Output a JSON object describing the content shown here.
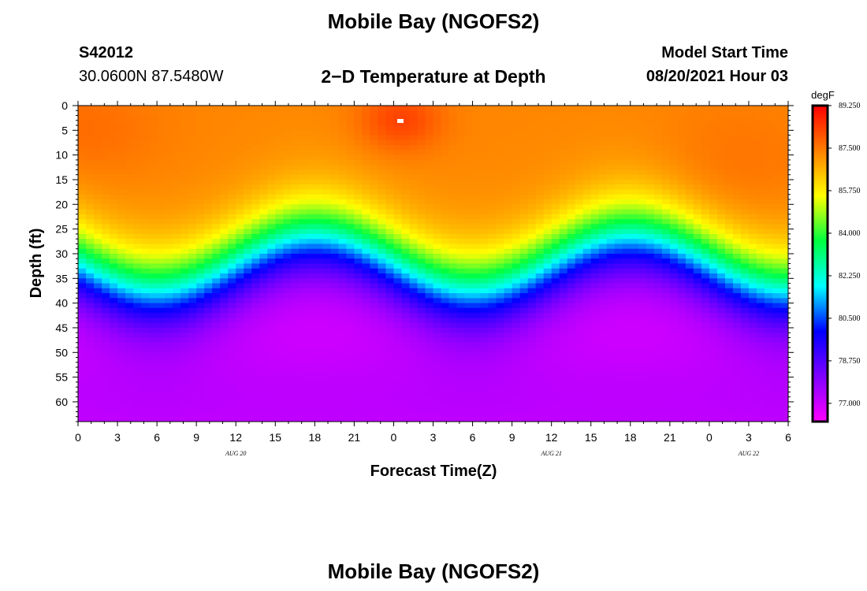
{
  "header": {
    "main_title": "Mobile Bay (NGOFS2)",
    "station_id": "S42012",
    "station_coords": "30.0600N  87.5480W",
    "chart_title": "2−D Temperature at Depth",
    "model_start_label": "Model Start Time",
    "model_start_value": "08/20/2021 Hour 03"
  },
  "footer": {
    "title": "Mobile Bay (NGOFS2)"
  },
  "chart_data": {
    "type": "heatmap",
    "title": "2−D Temperature at Depth",
    "xlabel": "Forecast Time(Z)",
    "ylabel": "Depth (ft)",
    "x_range_hours": [
      0,
      54
    ],
    "y_range_ft": [
      0,
      64
    ],
    "y_reversed": true,
    "x_ticks": [
      "0",
      "3",
      "6",
      "9",
      "12",
      "15",
      "18",
      "21",
      "0",
      "3",
      "6",
      "9",
      "12",
      "15",
      "18",
      "21",
      "0",
      "3",
      "6"
    ],
    "date_labels": [
      {
        "hour": 12,
        "label": "AUG  20"
      },
      {
        "hour": 36,
        "label": "AUG  21"
      },
      {
        "hour": 51,
        "label": "AUG  22"
      }
    ],
    "y_ticks": [
      0,
      5,
      10,
      15,
      20,
      25,
      30,
      35,
      40,
      45,
      50,
      55,
      60
    ],
    "colorbar": {
      "unit": "degF",
      "min": 76.25,
      "max": 89.25,
      "labels": [
        "89.250",
        "87.500",
        "85.750",
        "84.000",
        "82.250",
        "80.500",
        "78.750",
        "77.000"
      ],
      "colors": [
        "#ff00ff",
        "#8000ff",
        "#0000ff",
        "#00ffff",
        "#00ff40",
        "#ffff00",
        "#ff8000",
        "#ff0000"
      ]
    },
    "gridlines": false
  }
}
